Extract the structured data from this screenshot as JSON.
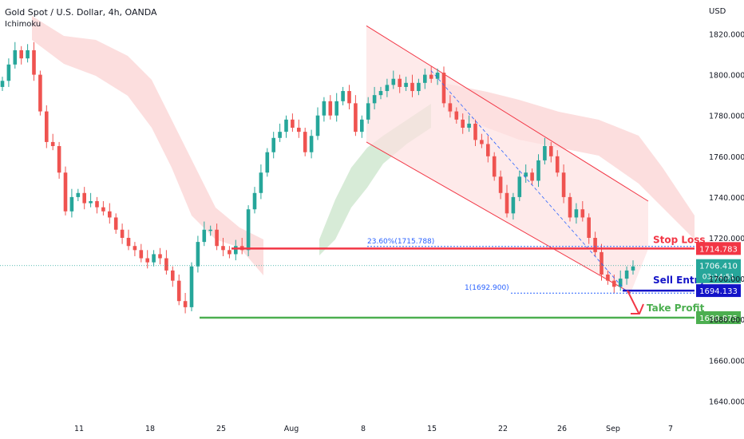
{
  "header": {
    "title": "Gold Spot / U.S. Dollar, 4h, OANDA",
    "indicator": "Ichimoku",
    "currency": "USD"
  },
  "colors": {
    "up": "#26a69a",
    "down": "#ef5350",
    "stop_loss": "#f23645",
    "sell_entry": "#1414c8",
    "take_profit": "#4caf50",
    "channel": "#f23645",
    "channel_fill": "#fde1e1",
    "cloud_bear": "#fbd3d3",
    "cloud_bull": "#cde6cd",
    "fib": "#2962ff",
    "price": "#26a69a"
  },
  "chart_data": {
    "type": "candlestick",
    "symbol": "XAUUSD",
    "timeframe": "4h",
    "x_ticks": [
      "11",
      "18",
      "25",
      "Aug",
      "8",
      "15",
      "22",
      "26",
      "Sep",
      "7"
    ],
    "y_ticks": [
      1640,
      1660,
      1680,
      1700,
      1720,
      1740,
      1760,
      1780,
      1800,
      1820
    ],
    "ylim": [
      1630,
      1832
    ],
    "price_path": [
      1797,
      1805,
      1812,
      1808,
      1812,
      1800,
      1782,
      1767,
      1765,
      1752,
      1733,
      1740,
      1742,
      1737,
      1738,
      1735,
      1733,
      1730,
      1724,
      1720,
      1716,
      1714,
      1710,
      1708,
      1712,
      1710,
      1704,
      1699,
      1689,
      1686,
      1706,
      1718,
      1724,
      1724,
      1716,
      1714,
      1712,
      1716,
      1714,
      1734,
      1742,
      1752,
      1762,
      1769,
      1772,
      1778,
      1774,
      1772,
      1762,
      1770,
      1780,
      1787,
      1780,
      1787,
      1792,
      1786,
      1772,
      1778,
      1786,
      1790,
      1792,
      1795,
      1798,
      1794,
      1796,
      1792,
      1796,
      1800,
      1798,
      1801,
      1786,
      1782,
      1778,
      1774,
      1776,
      1768,
      1766,
      1760,
      1750,
      1742,
      1732,
      1740,
      1750,
      1752,
      1748,
      1758,
      1765,
      1760,
      1752,
      1740,
      1730,
      1734,
      1730,
      1720,
      1713,
      1702,
      1699,
      1696,
      1700,
      1704,
      1706
    ],
    "levels": [
      {
        "label": "Stop Loss",
        "value": 1714.783,
        "tag": "1714.783"
      },
      {
        "label": "Sell Entry",
        "value": 1694.133,
        "tag": "1694.133"
      },
      {
        "label": "Take Profit",
        "value": 1680.875,
        "tag": "1680.875"
      }
    ],
    "current_price": {
      "value": 1706.41,
      "tag": "1706.410",
      "countdown": "03:14:51"
    },
    "fib_levels": [
      {
        "label": "23.60%(1715.788)",
        "value": 1715.788
      },
      {
        "label": "1(1692.900)",
        "value": 1692.9
      }
    ],
    "channel": {
      "upper": [
        [
          1824,
          8
        ],
        [
          1738,
          140
        ]
      ],
      "lower": [
        [
          1767,
          8
        ],
        [
          1693,
          138
        ]
      ]
    },
    "grid": false
  }
}
